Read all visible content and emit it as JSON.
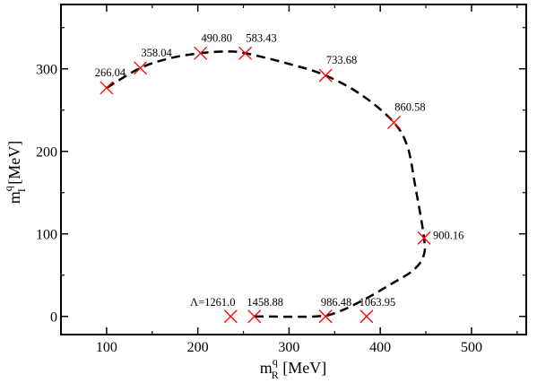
{
  "chart_data": {
    "type": "scatter",
    "xlabel": {
      "main": "m",
      "sup": "q",
      "sub": "R",
      "unit": " [MeV]"
    },
    "ylabel": {
      "main": "m",
      "sup": "q",
      "sub": "I",
      "unit": " [MeV]"
    },
    "xlim": [
      50,
      560
    ],
    "ylim": [
      -22,
      378
    ],
    "xticks": [
      100,
      200,
      300,
      400,
      500
    ],
    "yticks": [
      0,
      100,
      200,
      300
    ],
    "xtick_labels": [
      "100",
      "200",
      "300",
      "400",
      "500"
    ],
    "ytick_labels": [
      "0",
      "100",
      "200",
      "300"
    ],
    "grid": false,
    "marker_color": "#ff0000",
    "curve_color": "#000000",
    "points": [
      {
        "x": 100,
        "y": 277,
        "label": "266.04"
      },
      {
        "x": 137,
        "y": 301,
        "label": "358.04"
      },
      {
        "x": 203,
        "y": 319,
        "label": "490.80"
      },
      {
        "x": 252,
        "y": 319,
        "label": "583.43"
      },
      {
        "x": 340,
        "y": 292,
        "label": "733.68"
      },
      {
        "x": 415,
        "y": 235,
        "label": "860.58"
      },
      {
        "x": 448,
        "y": 95,
        "label": "900.16"
      },
      {
        "x": 385,
        "y": 0,
        "label": "1063.95"
      },
      {
        "x": 340,
        "y": 0,
        "label": "986.48"
      },
      {
        "x": 262,
        "y": 0,
        "label": "1458.88"
      },
      {
        "x": 236,
        "y": 0,
        "label": "Λ=1261.0"
      }
    ],
    "curve": [
      [
        100,
        277
      ],
      [
        137,
        301
      ],
      [
        170,
        313
      ],
      [
        203,
        319
      ],
      [
        230,
        321
      ],
      [
        252,
        319
      ],
      [
        300,
        306
      ],
      [
        340,
        292
      ],
      [
        380,
        268
      ],
      [
        415,
        235
      ],
      [
        430,
        205
      ],
      [
        438,
        160
      ],
      [
        448,
        95
      ],
      [
        447,
        72
      ],
      [
        435,
        55
      ],
      [
        410,
        38
      ],
      [
        385,
        22
      ],
      [
        355,
        6
      ],
      [
        330,
        0
      ],
      [
        262,
        0
      ]
    ]
  }
}
